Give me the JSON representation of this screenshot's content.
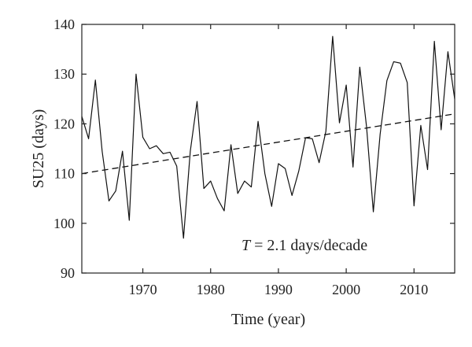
{
  "chart_data": {
    "type": "line",
    "xlabel": "Time (year)",
    "ylabel": "SU25 (days)",
    "xlim": [
      1961,
      2016
    ],
    "ylim": [
      90,
      140
    ],
    "x_ticks": [
      1970,
      1980,
      1990,
      2000,
      2010
    ],
    "y_ticks": [
      90,
      100,
      110,
      120,
      130,
      140
    ],
    "grid": false,
    "series": [
      {
        "style": "solid",
        "x": [
          1961,
          1962,
          1963,
          1964,
          1965,
          1966,
          1967,
          1968,
          1969,
          1970,
          1971,
          1972,
          1973,
          1974,
          1975,
          1976,
          1977,
          1978,
          1979,
          1980,
          1981,
          1982,
          1983,
          1984,
          1985,
          1986,
          1987,
          1988,
          1989,
          1990,
          1991,
          1992,
          1993,
          1994,
          1995,
          1996,
          1997,
          1998,
          1999,
          2000,
          2001,
          2002,
          2003,
          2004,
          2005,
          2006,
          2007,
          2008,
          2009,
          2010,
          2011,
          2012,
          2013,
          2014,
          2015,
          2016
        ],
        "y": [
          121.5,
          117,
          128.8,
          114.5,
          104.5,
          106.5,
          114.5,
          100.6,
          130,
          117.3,
          115,
          115.6,
          114,
          114.3,
          111.5,
          97,
          114.5,
          124.5,
          107,
          108.5,
          105,
          102.5,
          115.8,
          106,
          108.5,
          107.3,
          120.5,
          110,
          103.4,
          112,
          111,
          105.6,
          110.5,
          117.2,
          117,
          112.2,
          118.5,
          137.6,
          120.2,
          127.8,
          111.3,
          131.4,
          119.4,
          102.3,
          117.9,
          128.7,
          132.5,
          132.2,
          128.3,
          103.5,
          119.7,
          110.8,
          136.6,
          118.8,
          134.5,
          125
        ]
      },
      {
        "style": "dashed",
        "x": [
          1961,
          2016
        ],
        "y": [
          110,
          122
        ]
      }
    ],
    "annotation": {
      "symbol": "T",
      "text": " = 2.1 days/decade"
    }
  }
}
